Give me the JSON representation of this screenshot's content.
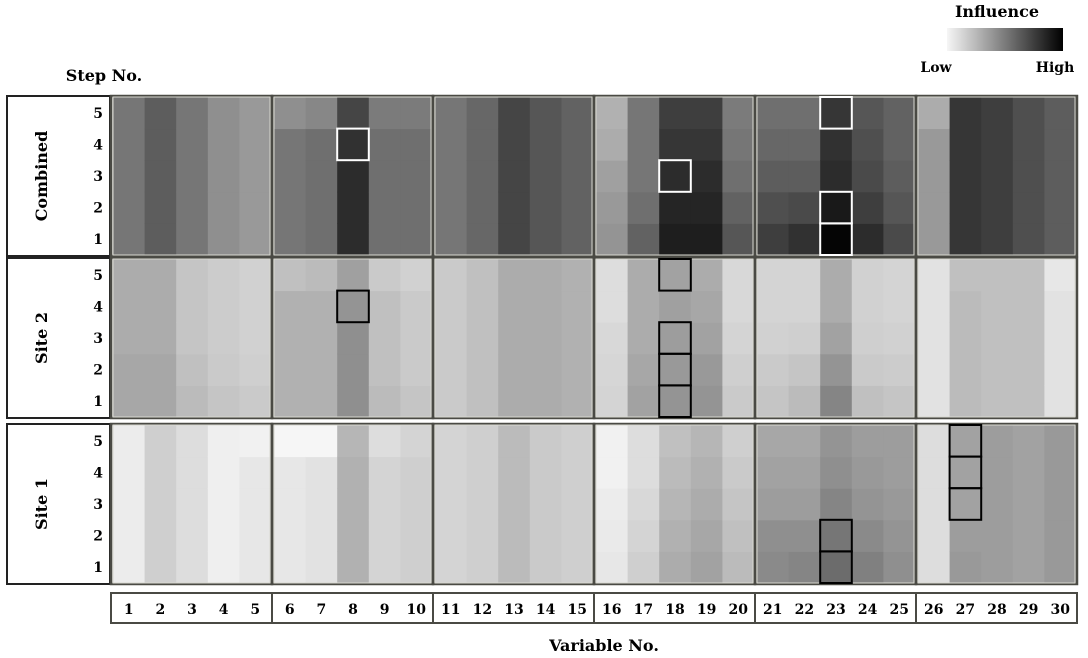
{
  "chart_data": {
    "type": "heatmap",
    "title": "",
    "xlabel": "Variable No.",
    "ylabel": "Step No.",
    "legend": {
      "title": "Influence",
      "low_label": "Low",
      "high_label": "High",
      "placement": "top-right"
    },
    "color_scale": {
      "low": "#f6f6f6",
      "high": "#000000"
    },
    "rows": [
      "Combined",
      "Site 2",
      "Site 1"
    ],
    "steps": [
      5,
      4,
      3,
      2,
      1
    ],
    "variables": [
      1,
      2,
      3,
      4,
      5,
      6,
      7,
      8,
      9,
      10,
      11,
      12,
      13,
      14,
      15,
      16,
      17,
      18,
      19,
      20,
      21,
      22,
      23,
      24,
      25,
      26,
      27,
      28,
      29,
      30
    ],
    "value_range": [
      0,
      1
    ],
    "note": "values are relative influence 0 (low) to 1 (high); arrays per variable ordered step 1..5",
    "panels": [
      {
        "name": "Combined",
        "values": [
          [
            0.52,
            0.52,
            0.52,
            0.52,
            0.52
          ],
          [
            0.62,
            0.62,
            0.62,
            0.62,
            0.62
          ],
          [
            0.52,
            0.52,
            0.52,
            0.52,
            0.52
          ],
          [
            0.42,
            0.42,
            0.42,
            0.42,
            0.42
          ],
          [
            0.38,
            0.38,
            0.38,
            0.38,
            0.38
          ],
          [
            0.52,
            0.52,
            0.52,
            0.52,
            0.42
          ],
          [
            0.55,
            0.55,
            0.55,
            0.55,
            0.45
          ],
          [
            0.82,
            0.82,
            0.82,
            0.8,
            0.72
          ],
          [
            0.55,
            0.55,
            0.55,
            0.55,
            0.5
          ],
          [
            0.55,
            0.55,
            0.55,
            0.55,
            0.5
          ],
          [
            0.52,
            0.52,
            0.52,
            0.52,
            0.52
          ],
          [
            0.58,
            0.58,
            0.58,
            0.58,
            0.58
          ],
          [
            0.72,
            0.72,
            0.72,
            0.72,
            0.72
          ],
          [
            0.65,
            0.65,
            0.65,
            0.65,
            0.65
          ],
          [
            0.6,
            0.6,
            0.6,
            0.6,
            0.6
          ],
          [
            0.4,
            0.38,
            0.35,
            0.3,
            0.28
          ],
          [
            0.6,
            0.55,
            0.52,
            0.52,
            0.52
          ],
          [
            0.88,
            0.85,
            0.82,
            0.78,
            0.75
          ],
          [
            0.88,
            0.85,
            0.82,
            0.78,
            0.75
          ],
          [
            0.65,
            0.6,
            0.55,
            0.52,
            0.5
          ],
          [
            0.75,
            0.68,
            0.62,
            0.58,
            0.55
          ],
          [
            0.8,
            0.7,
            0.62,
            0.58,
            0.55
          ],
          [
            0.98,
            0.9,
            0.82,
            0.8,
            0.78
          ],
          [
            0.82,
            0.75,
            0.7,
            0.68,
            0.65
          ],
          [
            0.7,
            0.65,
            0.62,
            0.6,
            0.6
          ],
          [
            0.38,
            0.38,
            0.38,
            0.38,
            0.3
          ],
          [
            0.78,
            0.78,
            0.78,
            0.78,
            0.78
          ],
          [
            0.75,
            0.75,
            0.75,
            0.75,
            0.75
          ],
          [
            0.68,
            0.68,
            0.68,
            0.68,
            0.68
          ],
          [
            0.62,
            0.62,
            0.62,
            0.62,
            0.62
          ]
        ]
      },
      {
        "name": "Site 2",
        "values": [
          [
            0.32,
            0.32,
            0.3,
            0.3,
            0.3
          ],
          [
            0.32,
            0.32,
            0.3,
            0.3,
            0.3
          ],
          [
            0.24,
            0.22,
            0.2,
            0.2,
            0.2
          ],
          [
            0.2,
            0.18,
            0.17,
            0.17,
            0.17
          ],
          [
            0.18,
            0.16,
            0.15,
            0.15,
            0.15
          ],
          [
            0.28,
            0.28,
            0.28,
            0.28,
            0.22
          ],
          [
            0.28,
            0.28,
            0.28,
            0.28,
            0.24
          ],
          [
            0.42,
            0.42,
            0.42,
            0.4,
            0.35
          ],
          [
            0.24,
            0.22,
            0.22,
            0.22,
            0.18
          ],
          [
            0.2,
            0.18,
            0.18,
            0.18,
            0.15
          ],
          [
            0.18,
            0.18,
            0.18,
            0.18,
            0.18
          ],
          [
            0.22,
            0.22,
            0.22,
            0.22,
            0.22
          ],
          [
            0.3,
            0.3,
            0.3,
            0.3,
            0.3
          ],
          [
            0.3,
            0.3,
            0.3,
            0.3,
            0.3
          ],
          [
            0.28,
            0.28,
            0.28,
            0.28,
            0.28
          ],
          [
            0.14,
            0.13,
            0.12,
            0.1,
            0.1
          ],
          [
            0.34,
            0.32,
            0.3,
            0.3,
            0.3
          ],
          [
            0.4,
            0.38,
            0.36,
            0.35,
            0.34
          ],
          [
            0.4,
            0.38,
            0.34,
            0.32,
            0.3
          ],
          [
            0.18,
            0.16,
            0.14,
            0.12,
            0.12
          ],
          [
            0.2,
            0.18,
            0.15,
            0.14,
            0.14
          ],
          [
            0.24,
            0.2,
            0.16,
            0.14,
            0.14
          ],
          [
            0.46,
            0.4,
            0.34,
            0.3,
            0.3
          ],
          [
            0.22,
            0.18,
            0.16,
            0.15,
            0.15
          ],
          [
            0.2,
            0.17,
            0.15,
            0.14,
            0.14
          ],
          [
            0.08,
            0.08,
            0.08,
            0.08,
            0.08
          ],
          [
            0.24,
            0.24,
            0.24,
            0.24,
            0.22
          ],
          [
            0.22,
            0.22,
            0.22,
            0.22,
            0.22
          ],
          [
            0.22,
            0.22,
            0.22,
            0.22,
            0.22
          ],
          [
            0.08,
            0.08,
            0.08,
            0.08,
            0.06
          ]
        ]
      },
      {
        "name": "Site 1",
        "values": [
          [
            0.04,
            0.04,
            0.04,
            0.04,
            0.04
          ],
          [
            0.16,
            0.16,
            0.16,
            0.16,
            0.16
          ],
          [
            0.1,
            0.1,
            0.1,
            0.1,
            0.1
          ],
          [
            0.03,
            0.03,
            0.03,
            0.03,
            0.03
          ],
          [
            0.06,
            0.06,
            0.06,
            0.06,
            0.02
          ],
          [
            0.06,
            0.06,
            0.06,
            0.06,
            0.0
          ],
          [
            0.08,
            0.08,
            0.08,
            0.08,
            0.0
          ],
          [
            0.28,
            0.28,
            0.28,
            0.28,
            0.26
          ],
          [
            0.14,
            0.14,
            0.14,
            0.14,
            0.1
          ],
          [
            0.16,
            0.16,
            0.16,
            0.16,
            0.14
          ],
          [
            0.14,
            0.14,
            0.14,
            0.14,
            0.14
          ],
          [
            0.16,
            0.16,
            0.16,
            0.16,
            0.16
          ],
          [
            0.24,
            0.24,
            0.24,
            0.24,
            0.24
          ],
          [
            0.18,
            0.18,
            0.18,
            0.18,
            0.18
          ],
          [
            0.16,
            0.16,
            0.16,
            0.16,
            0.16
          ],
          [
            0.06,
            0.05,
            0.04,
            0.02,
            0.02
          ],
          [
            0.16,
            0.14,
            0.12,
            0.1,
            0.1
          ],
          [
            0.3,
            0.28,
            0.26,
            0.24,
            0.22
          ],
          [
            0.34,
            0.32,
            0.3,
            0.28,
            0.26
          ],
          [
            0.24,
            0.22,
            0.2,
            0.18,
            0.16
          ],
          [
            0.44,
            0.42,
            0.36,
            0.34,
            0.32
          ],
          [
            0.46,
            0.42,
            0.36,
            0.34,
            0.32
          ],
          [
            0.56,
            0.52,
            0.46,
            0.42,
            0.4
          ],
          [
            0.48,
            0.44,
            0.4,
            0.38,
            0.36
          ],
          [
            0.42,
            0.4,
            0.38,
            0.36,
            0.36
          ],
          [
            0.1,
            0.1,
            0.1,
            0.1,
            0.1
          ],
          [
            0.38,
            0.36,
            0.34,
            0.34,
            0.34
          ],
          [
            0.36,
            0.36,
            0.36,
            0.36,
            0.36
          ],
          [
            0.34,
            0.34,
            0.34,
            0.34,
            0.34
          ],
          [
            0.38,
            0.38,
            0.38,
            0.38,
            0.38
          ]
        ]
      }
    ],
    "highlighted_cells": [
      {
        "row": "Combined",
        "variable": 8,
        "step": 4
      },
      {
        "row": "Combined",
        "variable": 18,
        "step": 3
      },
      {
        "row": "Combined",
        "variable": 23,
        "step": 5
      },
      {
        "row": "Combined",
        "variable": 23,
        "step": 2
      },
      {
        "row": "Combined",
        "variable": 23,
        "step": 1
      },
      {
        "row": "Site 2",
        "variable": 8,
        "step": 4
      },
      {
        "row": "Site 2",
        "variable": 18,
        "step": 5
      },
      {
        "row": "Site 2",
        "variable": 18,
        "step": 3
      },
      {
        "row": "Site 2",
        "variable": 18,
        "step": 2
      },
      {
        "row": "Site 2",
        "variable": 18,
        "step": 1
      },
      {
        "row": "Site 1",
        "variable": 23,
        "step": 2
      },
      {
        "row": "Site 1",
        "variable": 23,
        "step": 1
      },
      {
        "row": "Site 1",
        "variable": 27,
        "step": 5
      },
      {
        "row": "Site 1",
        "variable": 27,
        "step": 4
      },
      {
        "row": "Site 1",
        "variable": 27,
        "step": 3
      }
    ],
    "grid": false
  }
}
